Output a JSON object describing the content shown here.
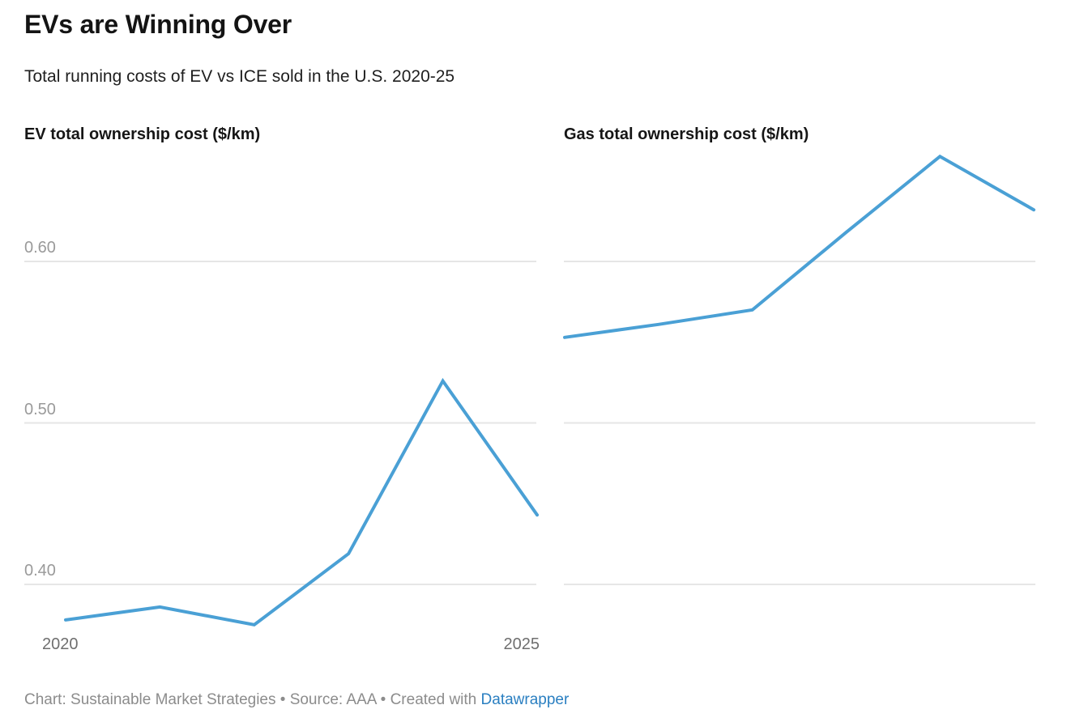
{
  "header": {
    "title": "EVs are Winning Over",
    "subtitle": "Total running costs of EV vs ICE sold in the U.S. 2020-25"
  },
  "chart_data": [
    {
      "type": "line",
      "title": "EV total ownership cost ($/km)",
      "x": [
        2020,
        2021,
        2022,
        2023,
        2024,
        2025
      ],
      "values": [
        0.378,
        0.386,
        0.375,
        0.419,
        0.526,
        0.443
      ],
      "xlabel": "",
      "ylabel": "$/km",
      "ylim": [
        0.368,
        0.672
      ],
      "y_gridlines": [
        0.4,
        0.5,
        0.6
      ],
      "y_tick_labels": [
        "0.40",
        "0.50",
        "0.60"
      ],
      "show_y_tick_labels": true,
      "x_tick_labels": [
        "2020",
        "2025"
      ],
      "grid": true,
      "legend": "none",
      "line_color": "#4aa0d5"
    },
    {
      "type": "line",
      "title": "Gas total ownership cost ($/km)",
      "x": [
        2020,
        2021,
        2022,
        2023,
        2024,
        2025
      ],
      "values": [
        0.553,
        0.561,
        0.57,
        0.618,
        0.665,
        0.632
      ],
      "xlabel": "",
      "ylabel": "$/km",
      "ylim": [
        0.368,
        0.672
      ],
      "y_gridlines": [
        0.4,
        0.5,
        0.6
      ],
      "y_tick_labels": [
        "0.40",
        "0.50",
        "0.60"
      ],
      "show_y_tick_labels": false,
      "x_tick_labels": [],
      "grid": true,
      "legend": "none",
      "line_color": "#4aa0d5"
    }
  ],
  "footer": {
    "credit_text": "Chart: Sustainable Market Strategies • Source: AAA • Created with ",
    "link_label": "Datawrapper"
  },
  "colors": {
    "line": "#4aa0d5",
    "gridline": "#e6e6e6",
    "y_tick_text": "#9a9a9a",
    "x_tick_text": "#6f6f6f",
    "title_text": "#141414",
    "footer_text": "#8c8c8c",
    "link": "#2a7fc1",
    "background": "#ffffff"
  }
}
